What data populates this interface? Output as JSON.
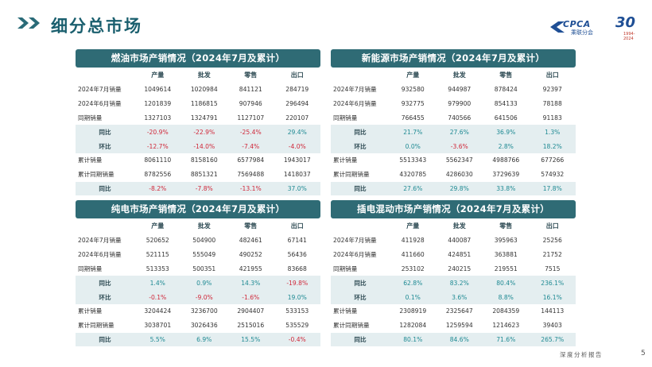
{
  "header": {
    "title": "细分总市场",
    "logo_text": "CPCA",
    "logo_sub": "乘联分会",
    "anniv_num": "30",
    "anniv_years": "1994-2024"
  },
  "columns": [
    "产量",
    "批发",
    "零售",
    "出口"
  ],
  "panels": [
    {
      "title": "燃油市场产销情况（2024年7月及累计）",
      "rows": [
        {
          "label": "2024年7月销量",
          "hl": false,
          "cells": [
            [
              "1049614",
              ""
            ],
            [
              "1020984",
              ""
            ],
            [
              "841121",
              ""
            ],
            [
              "284719",
              ""
            ]
          ]
        },
        {
          "label": "2024年6月销量",
          "hl": false,
          "cells": [
            [
              "1201839",
              ""
            ],
            [
              "1186815",
              ""
            ],
            [
              "907946",
              ""
            ],
            [
              "296494",
              ""
            ]
          ]
        },
        {
          "label": "同期销量",
          "hl": false,
          "cells": [
            [
              "1327103",
              ""
            ],
            [
              "1324791",
              ""
            ],
            [
              "1127107",
              ""
            ],
            [
              "220107",
              ""
            ]
          ]
        },
        {
          "label": "同比",
          "hl": true,
          "cells": [
            [
              "-20.9%",
              "neg"
            ],
            [
              "-22.9%",
              "neg"
            ],
            [
              "-25.4%",
              "neg"
            ],
            [
              "29.4%",
              "pos"
            ]
          ]
        },
        {
          "label": "环比",
          "hl": true,
          "cells": [
            [
              "-12.7%",
              "neg"
            ],
            [
              "-14.0%",
              "neg"
            ],
            [
              "-7.4%",
              "neg"
            ],
            [
              "-4.0%",
              "neg"
            ]
          ]
        },
        {
          "label": "累计销量",
          "hl": false,
          "cells": [
            [
              "8061110",
              ""
            ],
            [
              "8158160",
              ""
            ],
            [
              "6577984",
              ""
            ],
            [
              "1943017",
              ""
            ]
          ]
        },
        {
          "label": "累计同期销量",
          "hl": false,
          "cells": [
            [
              "8782556",
              ""
            ],
            [
              "8851321",
              ""
            ],
            [
              "7569488",
              ""
            ],
            [
              "1418037",
              ""
            ]
          ]
        },
        {
          "label": "同比",
          "hl": true,
          "cells": [
            [
              "-8.2%",
              "neg"
            ],
            [
              "-7.8%",
              "neg"
            ],
            [
              "-13.1%",
              "neg"
            ],
            [
              "37.0%",
              "pos"
            ]
          ]
        }
      ]
    },
    {
      "title": "新能源市场产销情况（2024年7月及累计）",
      "rows": [
        {
          "label": "2024年7月销量",
          "hl": false,
          "cells": [
            [
              "932580",
              ""
            ],
            [
              "944987",
              ""
            ],
            [
              "878424",
              ""
            ],
            [
              "92397",
              ""
            ]
          ]
        },
        {
          "label": "2024年6月销量",
          "hl": false,
          "cells": [
            [
              "932775",
              ""
            ],
            [
              "979900",
              ""
            ],
            [
              "854133",
              ""
            ],
            [
              "78188",
              ""
            ]
          ]
        },
        {
          "label": "同期销量",
          "hl": false,
          "cells": [
            [
              "766455",
              ""
            ],
            [
              "740566",
              ""
            ],
            [
              "641506",
              ""
            ],
            [
              "91183",
              ""
            ]
          ]
        },
        {
          "label": "同比",
          "hl": true,
          "cells": [
            [
              "21.7%",
              "pos"
            ],
            [
              "27.6%",
              "pos"
            ],
            [
              "36.9%",
              "pos"
            ],
            [
              "1.3%",
              "pos"
            ]
          ]
        },
        {
          "label": "环比",
          "hl": true,
          "cells": [
            [
              "0.0%",
              "pos"
            ],
            [
              "-3.6%",
              "neg"
            ],
            [
              "2.8%",
              "pos"
            ],
            [
              "18.2%",
              "pos"
            ]
          ]
        },
        {
          "label": "累计销量",
          "hl": false,
          "cells": [
            [
              "5513343",
              ""
            ],
            [
              "5562347",
              ""
            ],
            [
              "4988766",
              ""
            ],
            [
              "677266",
              ""
            ]
          ]
        },
        {
          "label": "累计同期销量",
          "hl": false,
          "cells": [
            [
              "4320785",
              ""
            ],
            [
              "4286030",
              ""
            ],
            [
              "3729639",
              ""
            ],
            [
              "574932",
              ""
            ]
          ]
        },
        {
          "label": "同比",
          "hl": true,
          "cells": [
            [
              "27.6%",
              "pos"
            ],
            [
              "29.8%",
              "pos"
            ],
            [
              "33.8%",
              "pos"
            ],
            [
              "17.8%",
              "pos"
            ]
          ]
        }
      ]
    },
    {
      "title": "纯电市场产销情况（2024年7月及累计）",
      "rows": [
        {
          "label": "2024年7月销量",
          "hl": false,
          "cells": [
            [
              "520652",
              ""
            ],
            [
              "504900",
              ""
            ],
            [
              "482461",
              ""
            ],
            [
              "67141",
              ""
            ]
          ]
        },
        {
          "label": "2024年6月销量",
          "hl": false,
          "cells": [
            [
              "521115",
              ""
            ],
            [
              "555049",
              ""
            ],
            [
              "490252",
              ""
            ],
            [
              "56436",
              ""
            ]
          ]
        },
        {
          "label": "同期销量",
          "hl": false,
          "cells": [
            [
              "513353",
              ""
            ],
            [
              "500351",
              ""
            ],
            [
              "421955",
              ""
            ],
            [
              "83668",
              ""
            ]
          ]
        },
        {
          "label": "同比",
          "hl": true,
          "cells": [
            [
              "1.4%",
              "pos"
            ],
            [
              "0.9%",
              "pos"
            ],
            [
              "14.3%",
              "pos"
            ],
            [
              "-19.8%",
              "neg"
            ]
          ]
        },
        {
          "label": "环比",
          "hl": true,
          "cells": [
            [
              "-0.1%",
              "neg"
            ],
            [
              "-9.0%",
              "neg"
            ],
            [
              "-1.6%",
              "neg"
            ],
            [
              "19.0%",
              "pos"
            ]
          ]
        },
        {
          "label": "累计销量",
          "hl": false,
          "cells": [
            [
              "3204424",
              ""
            ],
            [
              "3236700",
              ""
            ],
            [
              "2904407",
              ""
            ],
            [
              "533153",
              ""
            ]
          ]
        },
        {
          "label": "累计同期销量",
          "hl": false,
          "cells": [
            [
              "3038701",
              ""
            ],
            [
              "3026436",
              ""
            ],
            [
              "2515016",
              ""
            ],
            [
              "535529",
              ""
            ]
          ]
        },
        {
          "label": "同比",
          "hl": true,
          "cells": [
            [
              "5.5%",
              "pos"
            ],
            [
              "6.9%",
              "pos"
            ],
            [
              "15.5%",
              "pos"
            ],
            [
              "-0.4%",
              "neg"
            ]
          ]
        }
      ]
    },
    {
      "title": "插电混动市场产销情况（2024年7月及累计）",
      "rows": [
        {
          "label": "2024年7月销量",
          "hl": false,
          "cells": [
            [
              "411928",
              ""
            ],
            [
              "440087",
              ""
            ],
            [
              "395963",
              ""
            ],
            [
              "25256",
              ""
            ]
          ]
        },
        {
          "label": "2024年6月销量",
          "hl": false,
          "cells": [
            [
              "411660",
              ""
            ],
            [
              "424851",
              ""
            ],
            [
              "363881",
              ""
            ],
            [
              "21752",
              ""
            ]
          ]
        },
        {
          "label": "同期销量",
          "hl": false,
          "cells": [
            [
              "253102",
              ""
            ],
            [
              "240215",
              ""
            ],
            [
              "219551",
              ""
            ],
            [
              "7515",
              ""
            ]
          ]
        },
        {
          "label": "同比",
          "hl": true,
          "cells": [
            [
              "62.8%",
              "pos"
            ],
            [
              "83.2%",
              "pos"
            ],
            [
              "80.4%",
              "pos"
            ],
            [
              "236.1%",
              "pos"
            ]
          ]
        },
        {
          "label": "环比",
          "hl": true,
          "cells": [
            [
              "0.1%",
              "pos"
            ],
            [
              "3.6%",
              "pos"
            ],
            [
              "8.8%",
              "pos"
            ],
            [
              "16.1%",
              "pos"
            ]
          ]
        },
        {
          "label": "累计销量",
          "hl": false,
          "cells": [
            [
              "2308919",
              ""
            ],
            [
              "2325647",
              ""
            ],
            [
              "2084359",
              ""
            ],
            [
              "144113",
              ""
            ]
          ]
        },
        {
          "label": "累计同期销量",
          "hl": false,
          "cells": [
            [
              "1282084",
              ""
            ],
            [
              "1259594",
              ""
            ],
            [
              "1214623",
              ""
            ],
            [
              "39403",
              ""
            ]
          ]
        },
        {
          "label": "同比",
          "hl": true,
          "cells": [
            [
              "80.1%",
              "pos"
            ],
            [
              "84.6%",
              "pos"
            ],
            [
              "71.6%",
              "pos"
            ],
            [
              "265.7%",
              "pos"
            ]
          ]
        }
      ]
    }
  ],
  "footer": {
    "report_label": "深度分析报告",
    "page_number": "5"
  },
  "colors": {
    "accent": "#2f6b75",
    "title": "#1a5f6e",
    "positive": "#1f8a93",
    "negative": "#d0283a",
    "highlight_row": "#e4eef0"
  }
}
